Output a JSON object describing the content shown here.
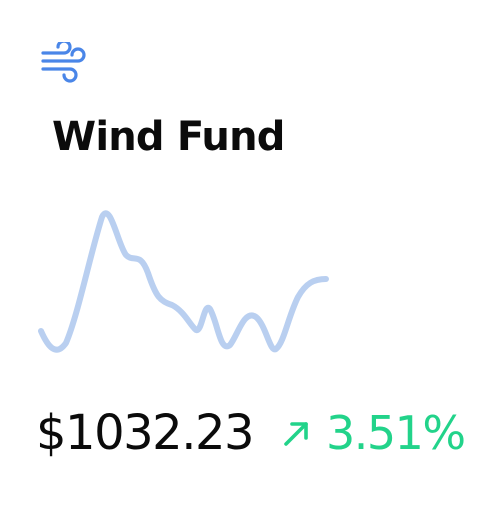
{
  "card": {
    "icon": "wind-icon",
    "title": "Wind Fund",
    "price": "$1032.23",
    "change": {
      "icon": "arrow-up-right-icon",
      "value": "3.51%",
      "direction": "up"
    }
  },
  "sparkline_trend": [
    0.15,
    0.05,
    0.35,
    0.95,
    0.65,
    0.55,
    0.38,
    0.3,
    0.18,
    0.32,
    0.1,
    0.28,
    0.05,
    0.33,
    0.45
  ],
  "colors": {
    "accent": "#4a86e8",
    "sparkline": "#b9cff0",
    "positive": "#22d38a",
    "text": "#0b0b0b",
    "background": "#ffffff"
  }
}
